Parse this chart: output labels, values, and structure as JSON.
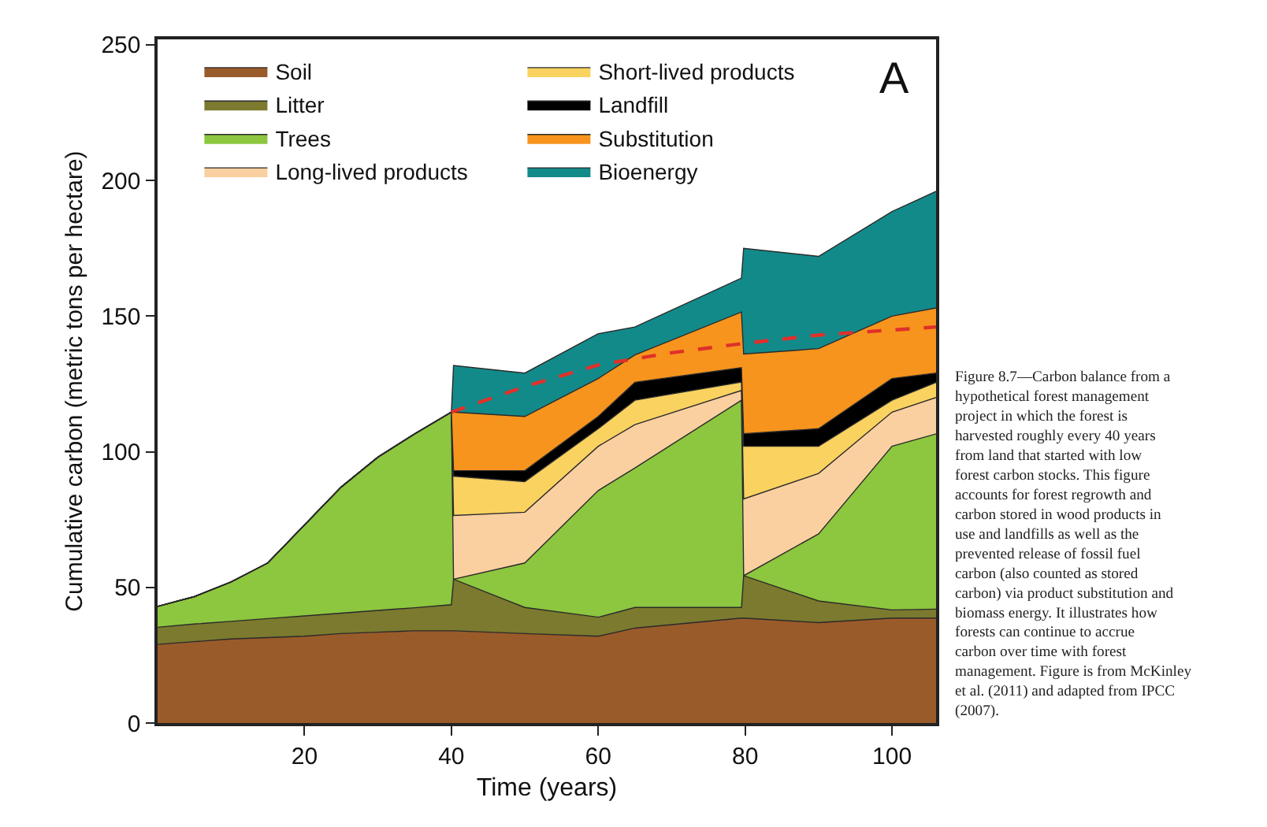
{
  "chart_data": {
    "type": "area",
    "stacked": true,
    "xlabel": "Time (years)",
    "ylabel": "Cumulative carbon (metric tons per hectare)",
    "x": [
      0,
      5,
      10,
      15,
      20,
      25,
      30,
      35,
      40,
      40.3,
      50,
      60,
      65,
      79.5,
      79.8,
      90,
      100,
      106
    ],
    "xlim": [
      0,
      106
    ],
    "xticks": [
      20,
      40,
      60,
      80,
      100
    ],
    "ylim": [
      0,
      252
    ],
    "yticks": [
      0,
      50,
      100,
      150,
      200,
      250
    ],
    "grid": false,
    "legend": "top left",
    "marker": "none",
    "series": [
      {
        "name": "Soil",
        "color": "#9a5b2a",
        "values": [
          29,
          30,
          31,
          31.5,
          32,
          33,
          33.5,
          34,
          34,
          34,
          33,
          32,
          35,
          38.7,
          38.7,
          37,
          38.7,
          38.7
        ]
      },
      {
        "name": "Litter",
        "color": "#7b7a2e",
        "values": [
          6.3,
          6.5,
          6.5,
          7,
          7.5,
          7.5,
          8,
          8.5,
          9.6,
          19,
          9.6,
          7,
          7.6,
          3.9,
          15.6,
          8,
          3,
          3.3
        ]
      },
      {
        "name": "Trees",
        "color": "#8dc63f",
        "values": [
          7.7,
          10.1,
          14.5,
          20.5,
          33.5,
          46.5,
          56.5,
          64.1,
          71,
          0,
          16.4,
          46.7,
          51.4,
          76.4,
          0,
          24.7,
          60.3,
          64.6
        ]
      },
      {
        "name": "Long-lived products",
        "color": "#fbd0a0",
        "values": [
          0,
          0,
          0,
          0,
          0,
          0,
          0,
          0,
          0,
          23.5,
          18.7,
          16.3,
          16,
          3.6,
          28.3,
          22.3,
          12.6,
          13.4
        ]
      },
      {
        "name": "Short-lived products",
        "color": "#f9d260",
        "values": [
          0,
          0,
          0,
          0,
          0,
          0,
          0,
          0,
          0,
          14.5,
          11.3,
          6.5,
          9,
          3.1,
          19.4,
          10,
          4.4,
          5.6
        ]
      },
      {
        "name": "Landfill",
        "color": "#000000",
        "values": [
          0,
          0,
          0,
          0,
          0,
          0,
          0,
          0,
          0,
          2,
          4,
          4.5,
          6.6,
          5.3,
          4.6,
          6.5,
          8,
          3.4
        ]
      },
      {
        "name": "Substitution",
        "color": "#f7941d",
        "values": [
          0,
          0,
          0,
          0,
          0,
          0,
          0,
          0,
          0,
          21.6,
          20,
          14,
          10.1,
          20.5,
          29.4,
          29.5,
          23,
          24
        ]
      },
      {
        "name": "Bioenergy",
        "color": "#138a8a",
        "values": [
          0,
          0,
          0,
          0,
          0,
          0,
          0,
          0,
          0,
          17.2,
          16,
          16.5,
          10.3,
          12.5,
          39,
          34,
          38.5,
          43
        ]
      },
      {
        "type": "line",
        "line_style": "dashed",
        "color": "#e0302a",
        "x": [
          40,
          50,
          60,
          70,
          80,
          90,
          106
        ],
        "values": [
          114.6,
          124,
          132,
          136.5,
          140,
          143,
          146
        ]
      }
    ],
    "annotations": [
      "A",
      "Figure 8.7—Carbon balance from a hypothetical forest management project in which the forest is harvested roughly every 40 years from land that started with low forest carbon stocks. This figure accounts for forest regrowth and carbon stored in wood products in use and landfills as well as the prevented release of fossil fuel carbon (also counted as stored carbon) via product substitution and biomass energy. It illustrates how forests can continue to accrue carbon over time with forest management. Figure is from McKinley et al. (2011) and adapted from IPCC (2007)."
    ]
  }
}
